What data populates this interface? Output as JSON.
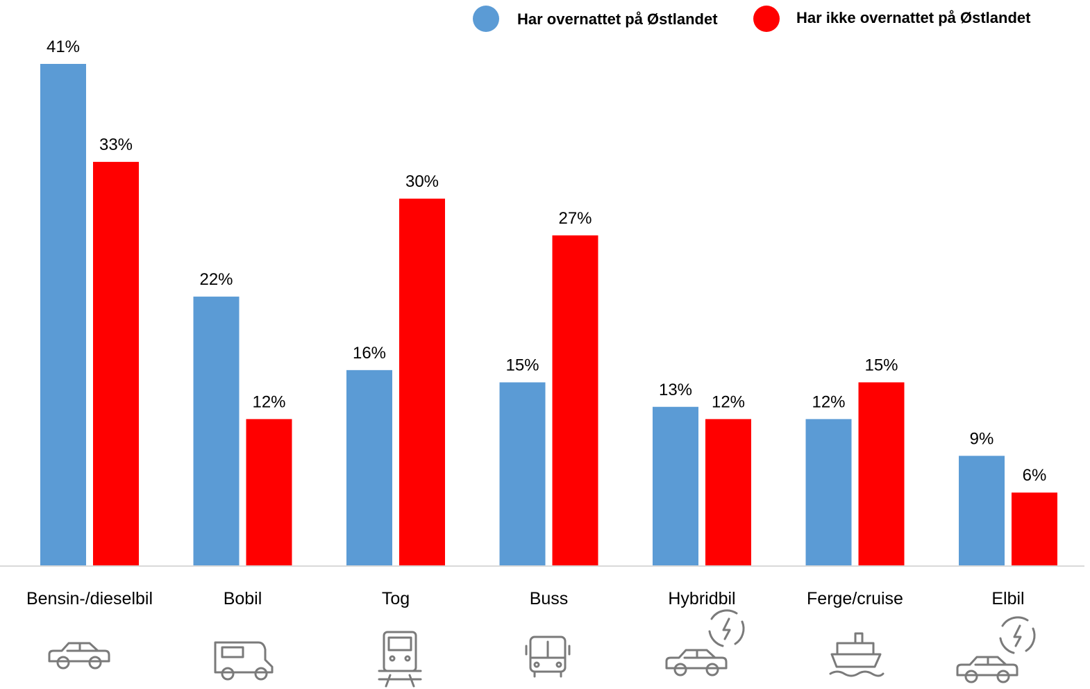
{
  "colors": {
    "series1": "#5B9BD5",
    "series2": "#FF0000",
    "axis": "#d9d9d9",
    "icon": "#7a7a7a"
  },
  "legend": [
    {
      "label": "Har overnattet på Østlandet"
    },
    {
      "label": "Har ikke overnattet på Østlandet"
    }
  ],
  "chart_data": {
    "type": "bar",
    "categories": [
      "Bensin-/dieselbil",
      "Bobil",
      "Tog",
      "Buss",
      "Hybridbil",
      "Ferge/cruise",
      "Elbil"
    ],
    "series": [
      {
        "name": "Har overnattet på Østlandet",
        "values": [
          41,
          22,
          16,
          15,
          13,
          12,
          9
        ],
        "labels": [
          "41%",
          "22%",
          "16%",
          "15%",
          "13%",
          "12%",
          "9%"
        ]
      },
      {
        "name": "Har ikke overnattet på Østlandet",
        "values": [
          33,
          12,
          30,
          27,
          12,
          15,
          6
        ],
        "labels": [
          "33%",
          "12%",
          "30%",
          "27%",
          "12%",
          "15%",
          "6%"
        ]
      }
    ],
    "ylim": [
      0,
      41
    ],
    "legend_position": "top-right",
    "grid": false,
    "icons": [
      "car-icon",
      "camper-icon",
      "train-icon",
      "bus-icon",
      "hybrid-car-icon",
      "ship-icon",
      "electric-car-icon"
    ]
  }
}
